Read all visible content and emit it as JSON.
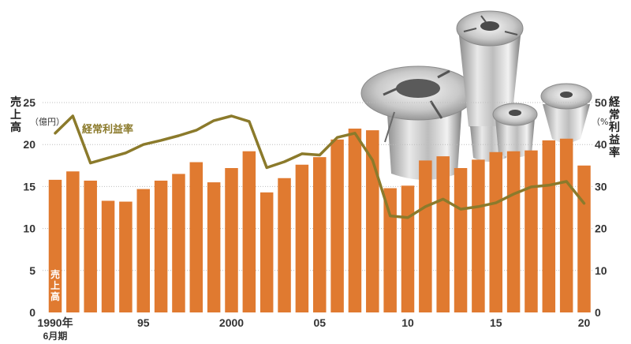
{
  "chart_data": {
    "type": "bar",
    "colors": {
      "bars": "#e07a30",
      "line": "#8b7a2b",
      "grid": "#bdbdbd"
    },
    "x": [
      1990,
      1991,
      1992,
      1993,
      1994,
      1995,
      1996,
      1997,
      1998,
      1999,
      2000,
      2001,
      2002,
      2003,
      2004,
      2005,
      2006,
      2007,
      2008,
      2009,
      2010,
      2011,
      2012,
      2013,
      2014,
      2015,
      2016,
      2017,
      2018,
      2019,
      2020
    ],
    "x_ticks": [
      {
        "x": 1990,
        "label": "1990年",
        "sub": "6月期"
      },
      {
        "x": 1995,
        "label": "95"
      },
      {
        "x": 2000,
        "label": "2000"
      },
      {
        "x": 2005,
        "label": "05"
      },
      {
        "x": 2010,
        "label": "10"
      },
      {
        "x": 2015,
        "label": "15"
      },
      {
        "x": 2020,
        "label": "20"
      }
    ],
    "left_axis": {
      "label_chars": [
        "売",
        "上",
        "高"
      ],
      "unit": "（億円）",
      "ylim": [
        0,
        25
      ],
      "ticks": [
        0,
        5,
        10,
        15,
        20,
        25
      ]
    },
    "right_axis": {
      "label_chars": [
        "経",
        "常",
        "利",
        "益",
        "率"
      ],
      "unit": "（%）",
      "ylim": [
        0,
        50
      ],
      "ticks": [
        0,
        10,
        20,
        30,
        40,
        50
      ]
    },
    "grid": true,
    "series": [
      {
        "name": "売上高",
        "name_chars": [
          "売",
          "上",
          "高"
        ],
        "kind": "bar",
        "axis": "left",
        "values": [
          15.8,
          16.8,
          15.7,
          13.3,
          13.2,
          14.7,
          15.7,
          16.5,
          17.9,
          15.5,
          17.2,
          19.2,
          14.3,
          16.0,
          17.6,
          18.5,
          20.6,
          21.9,
          21.7,
          14.8,
          15.1,
          18.1,
          18.6,
          17.2,
          18.2,
          19.1,
          19.2,
          19.3,
          20.5,
          20.7,
          17.5
        ]
      },
      {
        "name": "経常利益率",
        "kind": "line",
        "axis": "right",
        "values": [
          42.7,
          46.8,
          35.6,
          36.8,
          38.0,
          40.0,
          41.0,
          42.1,
          43.4,
          45.7,
          46.8,
          45.5,
          34.5,
          35.9,
          37.8,
          37.5,
          41.7,
          42.7,
          36.3,
          23.0,
          22.6,
          25.2,
          27.0,
          24.6,
          25.2,
          26.1,
          28.2,
          29.9,
          30.3,
          31.2,
          26.0
        ]
      }
    ]
  }
}
